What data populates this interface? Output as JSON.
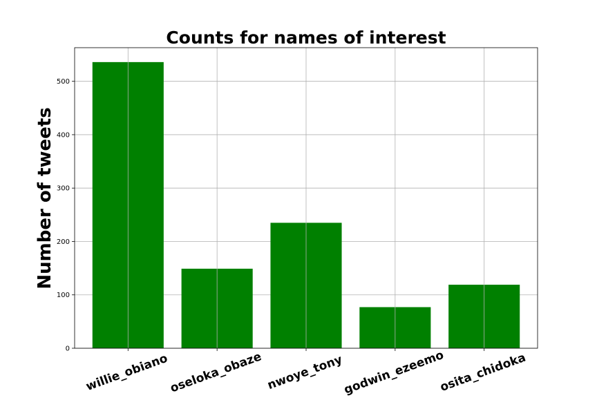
{
  "chart_data": {
    "type": "bar",
    "title": "Counts for names of interest",
    "xlabel": "",
    "ylabel": "Number of tweets",
    "categories": [
      "willie_obiano",
      "oseloka_obaze",
      "nwoye_tony",
      "godwin_ezeemo",
      "osita_chidoka"
    ],
    "values": [
      536,
      149,
      235,
      77,
      119
    ],
    "ylim": [
      0,
      563
    ],
    "yticks": [
      0,
      100,
      200,
      300,
      400,
      500
    ],
    "grid": true,
    "bar_color": "#008000",
    "xtick_rotation": -20
  }
}
